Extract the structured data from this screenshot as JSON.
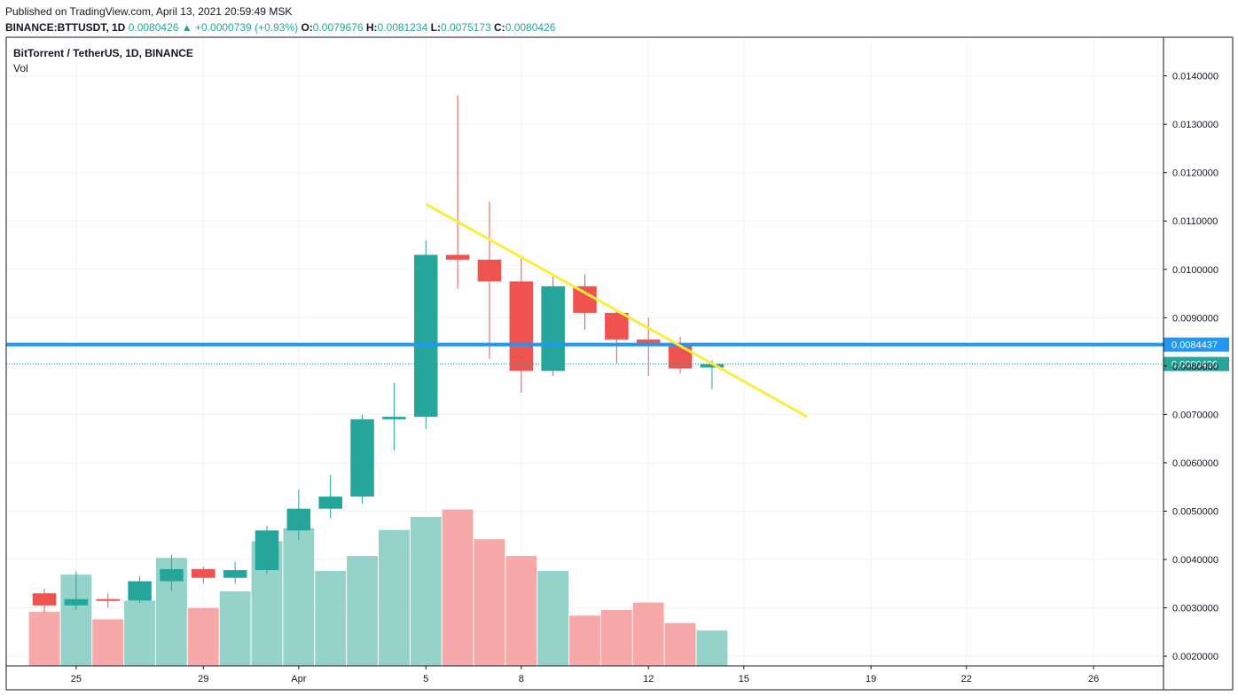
{
  "header": {
    "published": "Published on TradingView.com, April 13, 2021 20:59:49 MSK",
    "symbol": "BINANCE:BTTUSDT, 1D",
    "last": "0.0080426",
    "arrow": "▲",
    "change": "+0.0000739 (+0.93%)",
    "o_label": "O:",
    "o_value": "0.0079676",
    "h_label": "H:",
    "h_value": "0.0081234",
    "l_label": "L:",
    "l_value": "0.0075173",
    "c_label": "C:",
    "c_value": "0.0080426"
  },
  "legend": {
    "title": "BitTorrent / TetherUS, 1D, BINANCE",
    "volume_label": "Vol"
  },
  "colors": {
    "up": "#26a69a",
    "down": "#ef5350",
    "vol_up": "#94d2ca",
    "vol_down": "#f6a9a8",
    "support_line": "#2196f3",
    "trend_line": "#ffeb3b",
    "grid": "#f0f3fa"
  },
  "chart_data": {
    "type": "candlestick",
    "y_axis": {
      "ticks": [
        "0.0020000",
        "0.0030000",
        "0.0040000",
        "0.0050000",
        "0.0060000",
        "0.0070000",
        "0.0080000",
        "0.0090000",
        "0.0100000",
        "0.0110000",
        "0.0120000",
        "0.0130000",
        "0.0140000"
      ],
      "tick_values": [
        0.002,
        0.003,
        0.004,
        0.005,
        0.006,
        0.007,
        0.008,
        0.009,
        0.01,
        0.011,
        0.012,
        0.013,
        0.014
      ],
      "range": [
        0.0018,
        0.0148
      ]
    },
    "x_axis": {
      "day_range": [
        -1.2,
        35.2
      ],
      "ticks": [
        {
          "label": "25",
          "day": 1
        },
        {
          "label": "29",
          "day": 5
        },
        {
          "label": "Apr",
          "day": 8
        },
        {
          "label": "5",
          "day": 12
        },
        {
          "label": "8",
          "day": 15
        },
        {
          "label": "12",
          "day": 19
        },
        {
          "label": "15",
          "day": 22
        },
        {
          "label": "19",
          "day": 26
        },
        {
          "label": "22",
          "day": 29
        },
        {
          "label": "26",
          "day": 33
        }
      ]
    },
    "candles": [
      {
        "date": "2021-03-24",
        "o": 0.0033,
        "h": 0.0034,
        "l": 0.0029,
        "c": 0.00305
      },
      {
        "date": "2021-03-25",
        "o": 0.00305,
        "h": 0.00375,
        "l": 0.00295,
        "c": 0.00318
      },
      {
        "date": "2021-03-26",
        "o": 0.00318,
        "h": 0.0033,
        "l": 0.003,
        "c": 0.00315
      },
      {
        "date": "2021-03-27",
        "o": 0.00315,
        "h": 0.00365,
        "l": 0.0031,
        "c": 0.00355
      },
      {
        "date": "2021-03-28",
        "o": 0.00355,
        "h": 0.0041,
        "l": 0.00335,
        "c": 0.0038
      },
      {
        "date": "2021-03-29",
        "o": 0.0038,
        "h": 0.00385,
        "l": 0.0035,
        "c": 0.00362
      },
      {
        "date": "2021-03-30",
        "o": 0.00362,
        "h": 0.00395,
        "l": 0.0035,
        "c": 0.00378
      },
      {
        "date": "2021-03-31",
        "o": 0.00378,
        "h": 0.0047,
        "l": 0.0037,
        "c": 0.0046
      },
      {
        "date": "2021-04-01",
        "o": 0.0046,
        "h": 0.00545,
        "l": 0.0044,
        "c": 0.00505
      },
      {
        "date": "2021-04-02",
        "o": 0.00505,
        "h": 0.00575,
        "l": 0.00485,
        "c": 0.0053
      },
      {
        "date": "2021-04-03",
        "o": 0.0053,
        "h": 0.007,
        "l": 0.00515,
        "c": 0.0069
      },
      {
        "date": "2021-04-04",
        "o": 0.0069,
        "h": 0.00765,
        "l": 0.00625,
        "c": 0.00695
      },
      {
        "date": "2021-04-05",
        "o": 0.00695,
        "h": 0.0106,
        "l": 0.0067,
        "c": 0.0103
      },
      {
        "date": "2021-04-06",
        "o": 0.0103,
        "h": 0.0136,
        "l": 0.0096,
        "c": 0.0102
      },
      {
        "date": "2021-04-07",
        "o": 0.0102,
        "h": 0.0114,
        "l": 0.00815,
        "c": 0.00975
      },
      {
        "date": "2021-04-08",
        "o": 0.00975,
        "h": 0.01025,
        "l": 0.00745,
        "c": 0.0079
      },
      {
        "date": "2021-04-09",
        "o": 0.0079,
        "h": 0.00985,
        "l": 0.0078,
        "c": 0.00965
      },
      {
        "date": "2021-04-10",
        "o": 0.00965,
        "h": 0.0099,
        "l": 0.00875,
        "c": 0.0091
      },
      {
        "date": "2021-04-11",
        "o": 0.0091,
        "h": 0.00915,
        "l": 0.00805,
        "c": 0.00855
      },
      {
        "date": "2021-04-12",
        "o": 0.00855,
        "h": 0.009,
        "l": 0.0078,
        "c": 0.00845
      },
      {
        "date": "2021-04-13",
        "o": 0.00845,
        "h": 0.0086,
        "l": 0.00785,
        "c": 0.00795
      },
      {
        "date": "2021-04-14",
        "o": 0.00797,
        "h": 0.00812,
        "l": 0.00752,
        "c": 0.00804
      }
    ],
    "volume": {
      "scale_max": 1.0,
      "values": [
        0.29,
        0.49,
        0.25,
        0.35,
        0.58,
        0.31,
        0.4,
        0.67,
        0.74,
        0.51,
        0.59,
        0.73,
        0.8,
        0.84,
        0.68,
        0.59,
        0.51,
        0.27,
        0.3,
        0.34,
        0.23,
        0.19
      ]
    },
    "horizontal_line": {
      "value": 0.0084437,
      "label": "0.0084437"
    },
    "last_price": {
      "value": 0.0080426,
      "label": "0.0080426"
    },
    "trend_line": {
      "start": {
        "day": 12,
        "price": 0.01135
      },
      "end": {
        "day": 24,
        "price": 0.00695
      }
    },
    "grid": true
  }
}
